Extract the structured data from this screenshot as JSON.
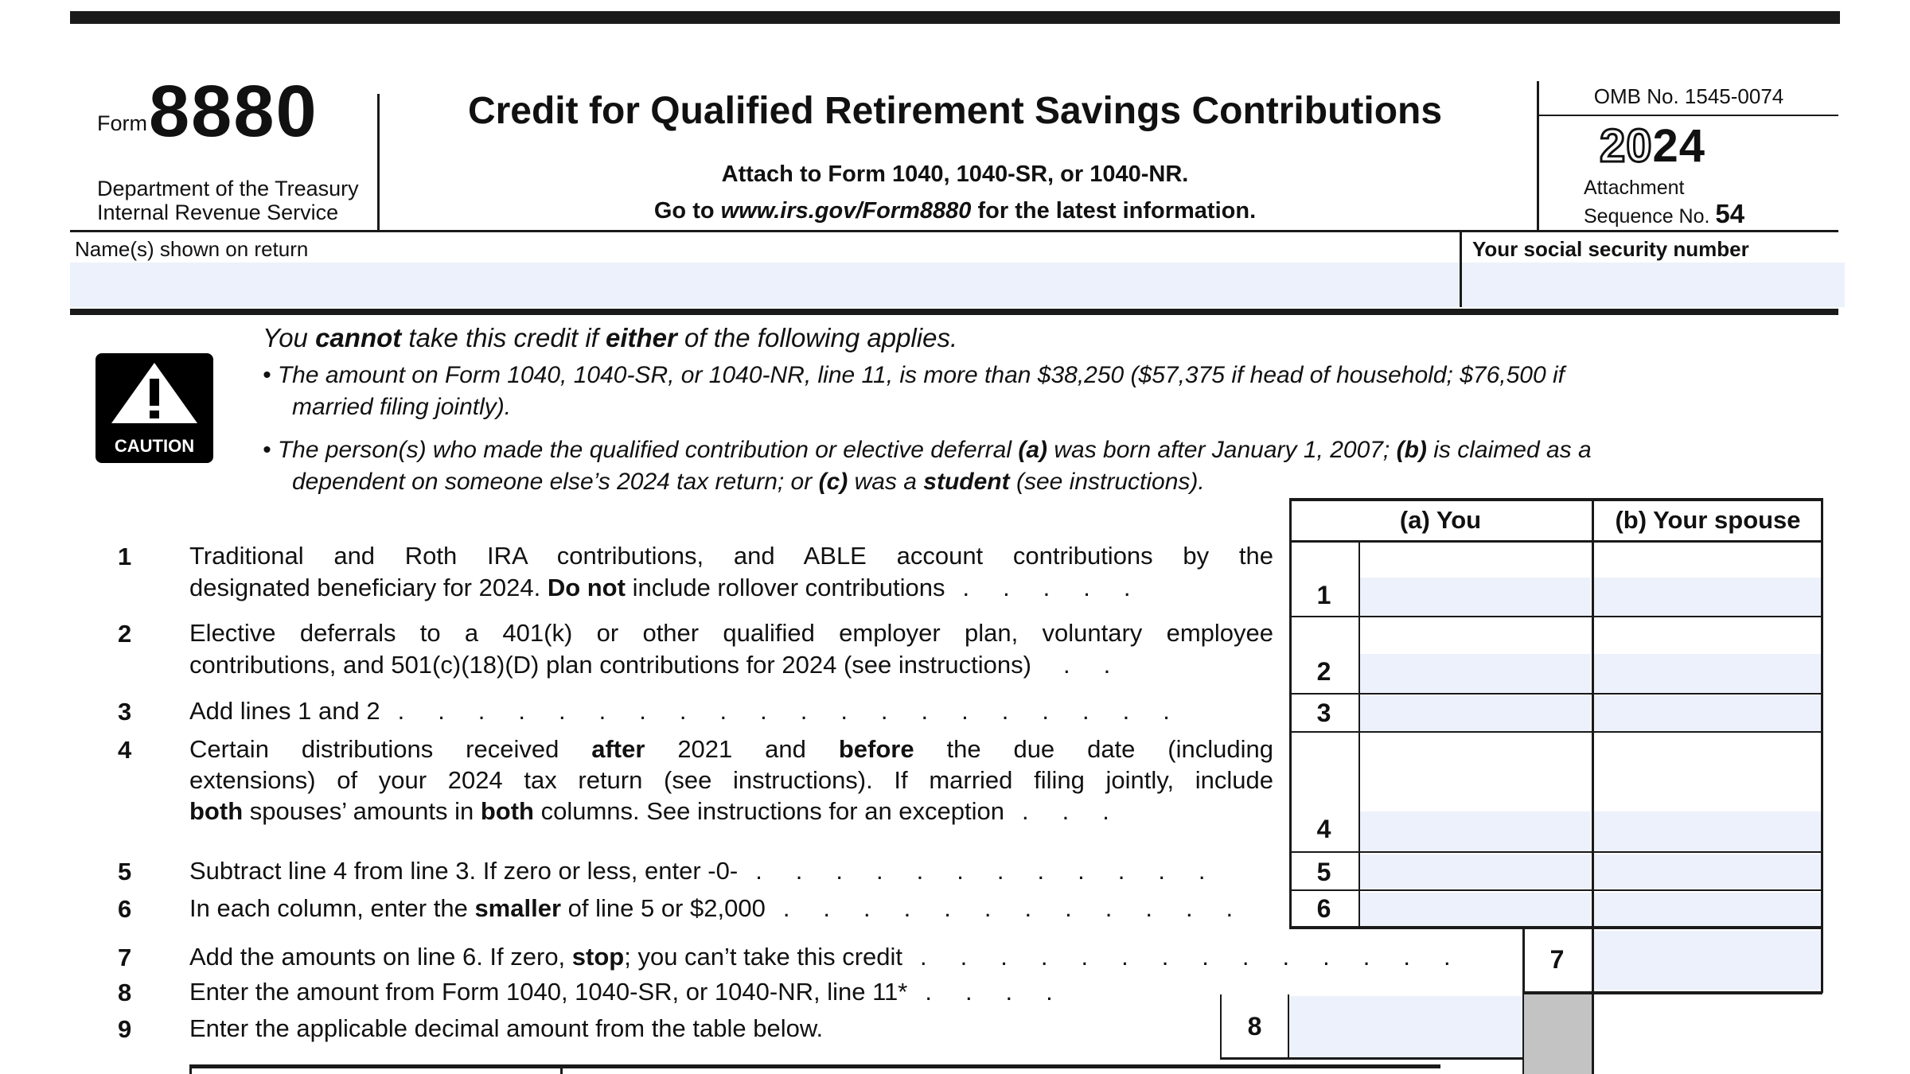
{
  "form": {
    "label": "Form",
    "number": "8880",
    "agency_line1": "Department of the Treasury",
    "agency_line2": "Internal Revenue Service"
  },
  "header": {
    "title": "Credit for Qualified Retirement Savings Contributions",
    "attach_line": "Attach to Form 1040, 1040-SR, or 1040-NR.",
    "goto_segs": [
      {
        "t": "Go to ",
        "b": true
      },
      {
        "t": "www.irs.gov/Form8880",
        "b": true,
        "i": true
      },
      {
        "t": " for the latest information.",
        "b": true
      }
    ],
    "omb": "OMB No. 1545-0074",
    "year_outline": "20",
    "year_bold": "24",
    "attachment_line1": "Attachment",
    "attachment_line2": "Sequence No. ",
    "attachment_number": "54"
  },
  "name_row": {
    "name_label": "Name(s) shown on return",
    "ssn_label": "Your social security number",
    "name_value": "",
    "ssn_value": ""
  },
  "caution": {
    "icon_label": "CAUTION",
    "heading_segs": [
      {
        "t": "You "
      },
      {
        "t": "cannot",
        "b": true
      },
      {
        "t": " take this credit if "
      },
      {
        "t": "either",
        "b": true
      },
      {
        "t": " of the following applies."
      }
    ],
    "bullet1_line1": [
      {
        "t": "• The amount on Form 1040, 1040-SR, or 1040-NR, line 11, is more than $38,250 ($57,375 if head of household; $76,500 if"
      }
    ],
    "bullet1_line2": [
      {
        "t": "married filing jointly)."
      }
    ],
    "bullet2_line1": [
      {
        "t": "• The person(s) who made the qualified contribution or elective deferral "
      },
      {
        "t": "(a)",
        "b": true
      },
      {
        "t": " was born after January 1, 2007; "
      },
      {
        "t": "(b)",
        "b": true
      },
      {
        "t": " is claimed as a"
      }
    ],
    "bullet2_line2": [
      {
        "t": "dependent on someone else’s 2024 tax return; or "
      },
      {
        "t": "(c)",
        "b": true
      },
      {
        "t": " was a "
      },
      {
        "t": "student",
        "b": true
      },
      {
        "t": " (see instructions)."
      }
    ]
  },
  "table": {
    "col_a": "(a) You",
    "col_b": "(b) Your spouse"
  },
  "lines": [
    {
      "n": "1",
      "row1": [
        {
          "t": "Traditional and Roth IRA contributions, and ABLE account contributions by the"
        }
      ],
      "row2": [
        {
          "t": "designated beneficiary for 2024. "
        },
        {
          "t": "Do not",
          "b": true
        },
        {
          "t": " include rollover contributions"
        }
      ],
      "dots": "....."
    },
    {
      "n": "2",
      "row1": [
        {
          "t": "Elective deferrals to a 401(k) or other qualified employer plan, voluntary employee"
        }
      ],
      "row2": [
        {
          "t": "contributions, and 501(c)(18)(D) plan contributions for 2024 (see instructions)"
        }
      ],
      "dots": ".."
    },
    {
      "n": "3",
      "row1": [
        {
          "t": "Add lines 1 and 2"
        }
      ],
      "dots": "...................."
    },
    {
      "n": "4",
      "row1": [
        {
          "t": "Certain distributions received "
        },
        {
          "t": "after",
          "b": true
        },
        {
          "t": " 2021 and "
        },
        {
          "t": "before",
          "b": true
        },
        {
          "t": " the due date (including"
        }
      ],
      "row2": [
        {
          "t": "extensions) of your 2024 tax return (see instructions). If married filing jointly, include"
        }
      ],
      "row3": [
        {
          "t": "both",
          "b": true
        },
        {
          "t": " spouses’ amounts in "
        },
        {
          "t": "both",
          "b": true
        },
        {
          "t": " columns. See instructions for an exception"
        }
      ],
      "dots": "..."
    },
    {
      "n": "5",
      "row1": [
        {
          "t": "Subtract line 4 from line 3. If zero or less, enter -0-"
        }
      ],
      "dots": "............"
    },
    {
      "n": "6",
      "row1": [
        {
          "t": "In each column, enter the "
        },
        {
          "t": "smaller",
          "b": true
        },
        {
          "t": " of line 5 or $2,000"
        }
      ],
      "dots": "............"
    },
    {
      "n": "7",
      "row1": [
        {
          "t": "Add the amounts on line 6. If zero, "
        },
        {
          "t": "stop",
          "b": true
        },
        {
          "t": "; you can’t take this credit"
        }
      ],
      "dots": ".............."
    },
    {
      "n": "8",
      "row1": [
        {
          "t": "Enter the amount from Form 1040, 1040-SR, or 1040-NR, line 11*"
        }
      ],
      "dots": "...."
    },
    {
      "n": "9",
      "row1": [
        {
          "t": "Enter the applicable decimal amount from the table below."
        }
      ]
    }
  ],
  "fields": {
    "l1a": "",
    "l1b": "",
    "l2a": "",
    "l2b": "",
    "l3a": "",
    "l3b": "",
    "l4a": "",
    "l4b": "",
    "l5a": "",
    "l5b": "",
    "l6a": "",
    "l6b": "",
    "l7b": "",
    "l8": ""
  },
  "colors": {
    "field_blue": "#edf1fb",
    "shaded_gray": "#c3c3c3",
    "line_black": "#1a1a1a"
  }
}
